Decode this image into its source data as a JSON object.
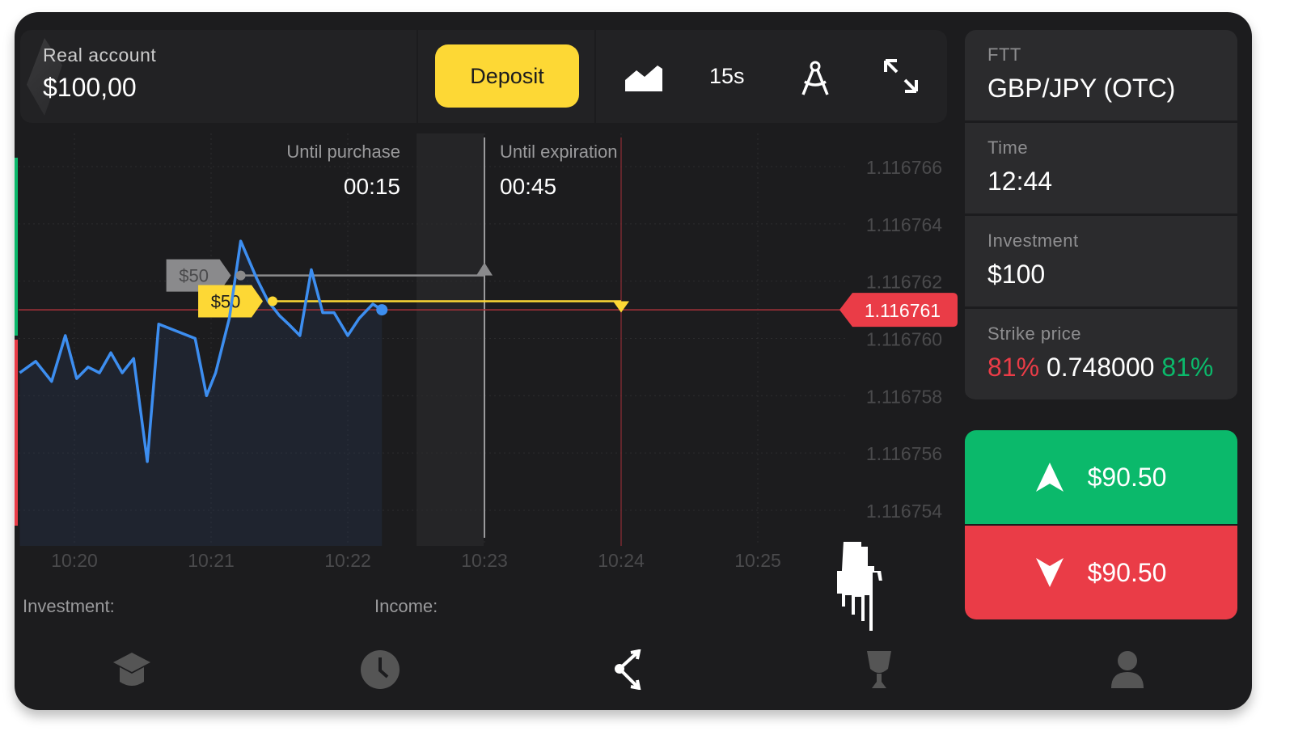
{
  "header": {
    "account_label": "Real account",
    "balance": "$100,00",
    "deposit_label": "Deposit",
    "timeframe": "15s",
    "chart_type_icon": "area-chart-icon",
    "indicators_icon": "compass-icon",
    "fullscreen_icon": "expand-icon"
  },
  "panel": {
    "asset_label": "FTT",
    "asset": "GBP/JPY (OTC)",
    "time_label": "Time",
    "time": "12:44",
    "investment_label": "Investment",
    "investment": "$100",
    "strike_label": "Strike price",
    "payout_left": "81%",
    "strike": "0.748000",
    "payout_right": "81%",
    "up_amount": "$90.50",
    "down_amount": "$90.50"
  },
  "timers": {
    "purchase_label": "Until purchase",
    "purchase": "00:15",
    "expiration_label": "Until expiration",
    "expiration": "00:45"
  },
  "footer": {
    "investment_label": "Investment:",
    "income_label": "Income:"
  },
  "nav": [
    {
      "icon": "graduation-cap-icon"
    },
    {
      "icon": "clock-icon"
    },
    {
      "icon": "share-icon",
      "active": true
    },
    {
      "icon": "trophy-icon"
    },
    {
      "icon": "user-icon"
    }
  ],
  "colors": {
    "line": "#3d8ef0",
    "up": "#0bb96b",
    "down": "#ea3c47",
    "accent": "#fdd835"
  },
  "chart_data": {
    "type": "line",
    "current_price": "1.116761",
    "y_ticks": [
      "1.116766",
      "1.116764",
      "1.116762",
      "1.116760",
      "1.116758",
      "1.116756",
      "1.116754"
    ],
    "x_ticks": [
      "10:20",
      "10:21",
      "10:22",
      "10:23",
      "10:24",
      "10:25"
    ],
    "purchase_time": "10:23:00",
    "expiration_time": "10:24:00",
    "trades": [
      {
        "label": "$50",
        "price": 1.1167622,
        "open": "10:21:13",
        "color": "#8a8a8c"
      },
      {
        "label": "$50",
        "price": 1.1167613,
        "open": "10:21:27",
        "color": "#fdd835"
      }
    ],
    "points": [
      [
        "10:19:36",
        1.1167588
      ],
      [
        "10:19:43",
        1.1167592
      ],
      [
        "10:19:50",
        1.1167585
      ],
      [
        "10:19:56",
        1.1167601
      ],
      [
        "10:20:01",
        1.1167586
      ],
      [
        "10:20:06",
        1.116759
      ],
      [
        "10:20:11",
        1.1167588
      ],
      [
        "10:20:16",
        1.1167595
      ],
      [
        "10:20:21",
        1.1167588
      ],
      [
        "10:20:26",
        1.1167593
      ],
      [
        "10:20:32",
        1.1167557
      ],
      [
        "10:20:37",
        1.1167605
      ],
      [
        "10:20:53",
        1.11676
      ],
      [
        "10:20:58",
        1.116758
      ],
      [
        "10:21:02",
        1.1167588
      ],
      [
        "10:21:08",
        1.1167607
      ],
      [
        "10:21:13",
        1.1167634
      ],
      [
        "10:21:20",
        1.1167621
      ],
      [
        "10:21:25",
        1.1167613
      ],
      [
        "10:21:30",
        1.1167608
      ],
      [
        "10:21:34",
        1.1167605
      ],
      [
        "10:21:39",
        1.1167601
      ],
      [
        "10:21:44",
        1.1167624
      ],
      [
        "10:21:49",
        1.1167609
      ],
      [
        "10:21:54",
        1.1167609
      ],
      [
        "10:22:00",
        1.1167601
      ],
      [
        "10:22:05",
        1.1167607
      ],
      [
        "10:22:11",
        1.1167612
      ],
      [
        "10:22:15",
        1.116761
      ]
    ]
  }
}
